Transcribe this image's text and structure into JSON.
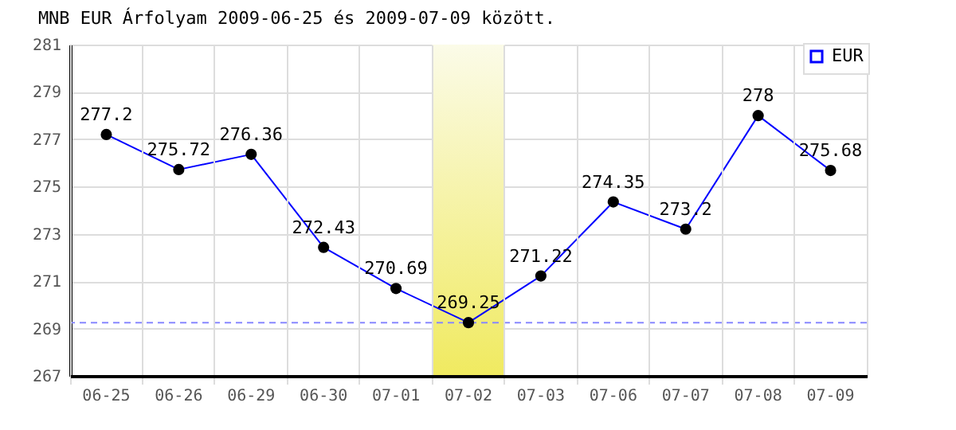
{
  "chart_data": {
    "type": "line",
    "title": "MNB EUR Árfolyam 2009-06-25 és 2009-07-09 között.",
    "categories": [
      "06-25",
      "06-26",
      "06-29",
      "06-30",
      "07-01",
      "07-02",
      "07-03",
      "07-06",
      "07-07",
      "07-08",
      "07-09"
    ],
    "series": [
      {
        "name": "EUR",
        "color": "#0000ff",
        "values": [
          277.2,
          275.72,
          276.36,
          272.43,
          270.69,
          269.25,
          271.22,
          274.35,
          273.2,
          278,
          275.68
        ]
      }
    ],
    "ylim": [
      267,
      281
    ],
    "yticks": [
      267,
      269,
      271,
      273,
      275,
      277,
      279,
      281
    ],
    "ref_lines": [
      {
        "axis": "y",
        "value": 269.25,
        "color": "#8888ff",
        "line_style": "dashed"
      }
    ],
    "bands": [
      {
        "axis": "x",
        "from": "07-02",
        "to": "07-02",
        "color": "#f0ea60"
      }
    ],
    "data_labels": true,
    "grid": true,
    "legend": "top right",
    "marker": "circle",
    "line_style": "solid"
  }
}
